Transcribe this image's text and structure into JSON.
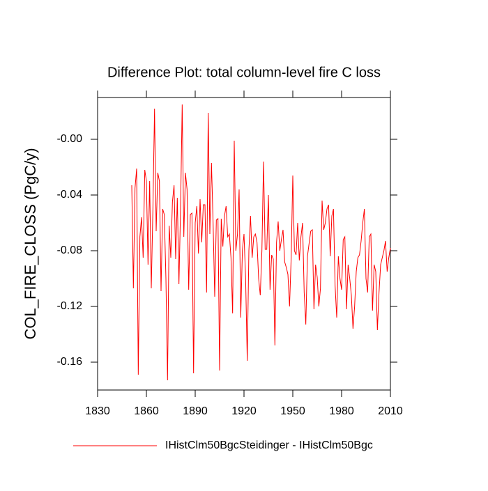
{
  "chart_data": {
    "type": "line",
    "title": "Difference Plot: total column-level fire C loss",
    "y_label": "COL_FIRE_CLOSS  (PgC/y)",
    "xlim": [
      1830,
      2010
    ],
    "xticks": [
      1830,
      1860,
      1890,
      1920,
      1950,
      1980,
      2010
    ],
    "ylim": [
      -0.18,
      0.03
    ],
    "yticks": [
      -0.16,
      -0.12,
      -0.08,
      -0.04,
      {
        "value": 0,
        "label": "-0.00"
      }
    ],
    "x": [
      1851,
      1852,
      1853,
      1854,
      1855,
      1856,
      1857,
      1858,
      1859,
      1860,
      1861,
      1862,
      1863,
      1864,
      1865,
      1866,
      1867,
      1868,
      1869,
      1870,
      1871,
      1872,
      1873,
      1874,
      1875,
      1876,
      1877,
      1878,
      1879,
      1880,
      1881,
      1882,
      1883,
      1884,
      1885,
      1886,
      1887,
      1888,
      1889,
      1890,
      1891,
      1892,
      1893,
      1894,
      1895,
      1896,
      1897,
      1898,
      1899,
      1900,
      1901,
      1902,
      1903,
      1904,
      1905,
      1906,
      1907,
      1908,
      1909,
      1910,
      1911,
      1912,
      1913,
      1914,
      1915,
      1916,
      1917,
      1918,
      1919,
      1920,
      1921,
      1922,
      1923,
      1924,
      1925,
      1926,
      1927,
      1928,
      1929,
      1930,
      1931,
      1932,
      1933,
      1934,
      1935,
      1936,
      1937,
      1938,
      1939,
      1940,
      1941,
      1942,
      1943,
      1944,
      1945,
      1946,
      1947,
      1948,
      1949,
      1950,
      1951,
      1952,
      1953,
      1954,
      1955,
      1956,
      1957,
      1958,
      1959,
      1960,
      1961,
      1962,
      1963,
      1964,
      1965,
      1966,
      1967,
      1968,
      1969,
      1970,
      1971,
      1972,
      1973,
      1974,
      1975,
      1976,
      1977,
      1978,
      1979,
      1980,
      1981,
      1982,
      1983,
      1984,
      1985,
      1986,
      1987,
      1988,
      1989,
      1990,
      1991,
      1992,
      1993,
      1994,
      1995,
      1996,
      1997,
      1998,
      1999,
      2000,
      2001,
      2002,
      2003,
      2004,
      2005,
      2006,
      2007,
      2008,
      2009,
      2010
    ],
    "series": [
      {
        "name": "IHistClm50BgcSteidinger - IHistClm50Bgc",
        "color": "#ff0000",
        "values": [
          -0.033,
          -0.107,
          -0.035,
          -0.021,
          -0.169,
          -0.07,
          -0.056,
          -0.085,
          -0.022,
          -0.03,
          -0.09,
          -0.03,
          -0.107,
          -0.05,
          0.022,
          -0.066,
          -0.024,
          -0.03,
          -0.109,
          -0.05,
          -0.054,
          -0.1,
          -0.173,
          -0.062,
          -0.085,
          -0.045,
          -0.033,
          -0.086,
          -0.042,
          -0.104,
          -0.05,
          0.025,
          -0.07,
          -0.024,
          -0.036,
          -0.108,
          -0.054,
          -0.053,
          -0.168,
          -0.06,
          -0.048,
          -0.082,
          -0.043,
          -0.074,
          -0.047,
          -0.047,
          -0.11,
          0.019,
          -0.068,
          -0.017,
          -0.06,
          -0.113,
          -0.058,
          -0.057,
          -0.166,
          -0.057,
          -0.077,
          -0.055,
          -0.048,
          -0.07,
          -0.068,
          -0.085,
          -0.125,
          -0.001,
          -0.08,
          -0.068,
          -0.036,
          -0.128,
          -0.08,
          -0.068,
          -0.1,
          -0.159,
          -0.08,
          -0.055,
          -0.085,
          -0.07,
          -0.068,
          -0.074,
          -0.1,
          -0.112,
          -0.08,
          -0.016,
          -0.079,
          -0.079,
          -0.04,
          -0.108,
          -0.083,
          -0.086,
          -0.148,
          -0.074,
          -0.059,
          -0.08,
          -0.072,
          -0.065,
          -0.088,
          -0.092,
          -0.097,
          -0.12,
          -0.085,
          -0.026,
          -0.08,
          -0.083,
          -0.06,
          -0.087,
          -0.07,
          -0.06,
          -0.11,
          -0.133,
          -0.084,
          -0.075,
          -0.066,
          -0.065,
          -0.122,
          -0.09,
          -0.099,
          -0.12,
          -0.107,
          -0.044,
          -0.065,
          -0.06,
          -0.05,
          -0.047,
          -0.084,
          -0.055,
          -0.05,
          -0.105,
          -0.128,
          -0.084,
          -0.1,
          -0.108,
          -0.072,
          -0.07,
          -0.122,
          -0.09,
          -0.1,
          -0.112,
          -0.136,
          -0.12,
          -0.095,
          -0.085,
          -0.083,
          -0.073,
          -0.06,
          -0.05,
          -0.1,
          -0.11,
          -0.07,
          -0.068,
          -0.123,
          -0.09,
          -0.095,
          -0.137,
          -0.11,
          -0.09,
          -0.085,
          -0.08,
          -0.073,
          -0.095,
          -0.085,
          -0.078
        ]
      }
    ]
  }
}
